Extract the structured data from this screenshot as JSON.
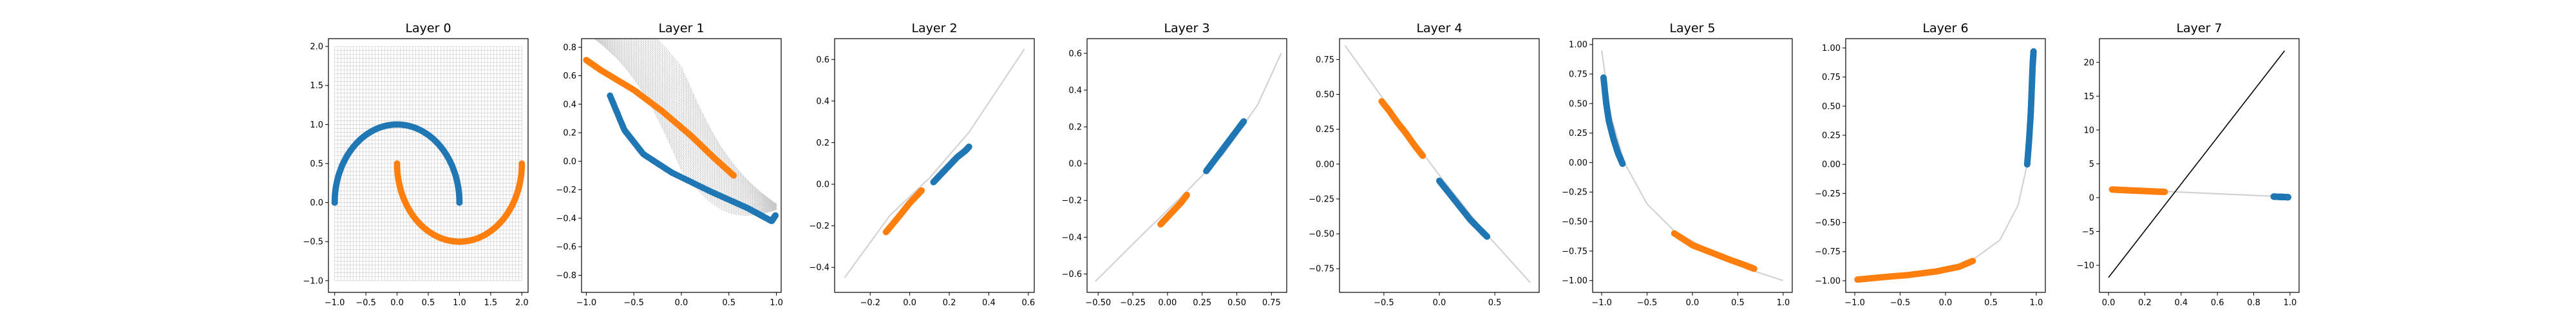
{
  "figure": {
    "colors": {
      "blue": "#1f77b4",
      "orange": "#ff7f0e",
      "grid": "#c8c8c8",
      "line": "#000000"
    }
  },
  "chart_data": [
    {
      "type": "scatter",
      "title": "Layer 0",
      "xlim": [
        -1.1,
        2.1
      ],
      "ylim": [
        -1.15,
        2.1
      ],
      "xticks": [
        -1.0,
        -0.5,
        0.0,
        0.5,
        1.0,
        1.5,
        2.0
      ],
      "xtick_labels": [
        "−1.0",
        "−0.5",
        "0.0",
        "0.5",
        "1.0",
        "1.5",
        "2.0"
      ],
      "yticks": [
        -1.0,
        -0.5,
        0.0,
        0.5,
        1.0,
        1.5,
        2.0
      ],
      "ytick_labels": [
        "−1.0",
        "−0.5",
        "0.0",
        "0.5",
        "1.0",
        "1.5",
        "2.0"
      ],
      "grid_mesh": {
        "x_range": [
          -1.0,
          2.0
        ],
        "y_range": [
          -1.0,
          2.0
        ],
        "shown": true
      },
      "series": [
        {
          "color": "#1f77b4",
          "shape": "upper half circle",
          "center": [
            0.0,
            0.0
          ],
          "radius": 1.0,
          "angle_deg": [
            0,
            180
          ]
        },
        {
          "color": "#ff7f0e",
          "shape": "lower half circle",
          "center": [
            1.0,
            0.5
          ],
          "radius": 1.0,
          "angle_deg": [
            180,
            360
          ]
        }
      ]
    },
    {
      "type": "scatter",
      "title": "Layer 1",
      "xlim": [
        -1.05,
        1.05
      ],
      "ylim": [
        -0.92,
        0.86
      ],
      "xticks": [
        -1.0,
        -0.5,
        0.0,
        0.5,
        1.0
      ],
      "xtick_labels": [
        "−1.0",
        "−0.5",
        "0.0",
        "0.5",
        "1.0"
      ],
      "yticks": [
        -0.8,
        -0.6,
        -0.4,
        -0.2,
        0.0,
        0.2,
        0.4,
        0.6,
        0.8
      ],
      "ytick_labels": [
        "−0.8",
        "−0.6",
        "−0.4",
        "−0.2",
        "0.0",
        "0.2",
        "0.4",
        "0.6",
        "0.8"
      ],
      "grid_band": {
        "shown": true
      },
      "series": [
        {
          "color": "#ff7f0e",
          "points": [
            [
              -1.0,
              0.71
            ],
            [
              -0.85,
              0.64
            ],
            [
              -0.5,
              0.5
            ],
            [
              -0.2,
              0.35
            ],
            [
              0.1,
              0.18
            ],
            [
              0.35,
              0.02
            ],
            [
              0.55,
              -0.1
            ]
          ]
        },
        {
          "color": "#1f77b4",
          "points": [
            [
              -0.75,
              0.46
            ],
            [
              -0.6,
              0.22
            ],
            [
              -0.4,
              0.05
            ],
            [
              -0.1,
              -0.08
            ],
            [
              0.3,
              -0.21
            ],
            [
              0.7,
              -0.33
            ],
            [
              0.95,
              -0.42
            ],
            [
              0.99,
              -0.38
            ]
          ]
        }
      ]
    },
    {
      "type": "scatter",
      "title": "Layer 2",
      "xlim": [
        -0.38,
        0.63
      ],
      "ylim": [
        -0.52,
        0.7
      ],
      "xticks": [
        -0.2,
        0.0,
        0.2,
        0.4,
        0.6
      ],
      "xtick_labels": [
        "−0.2",
        "0.0",
        "0.2",
        "0.4",
        "0.6"
      ],
      "yticks": [
        -0.4,
        -0.2,
        0.0,
        0.2,
        0.4,
        0.6
      ],
      "ytick_labels": [
        "−0.4",
        "−0.2",
        "0.0",
        "0.2",
        "0.4",
        "0.6"
      ],
      "curve": {
        "color": "#d3d3d3",
        "points": [
          [
            -0.33,
            -0.45
          ],
          [
            -0.1,
            -0.15
          ],
          [
            0.1,
            0.03
          ],
          [
            0.3,
            0.25
          ],
          [
            0.58,
            0.65
          ]
        ]
      },
      "series": [
        {
          "color": "#ff7f0e",
          "points": [
            [
              -0.12,
              -0.23
            ],
            [
              -0.05,
              -0.15
            ],
            [
              0.0,
              -0.09
            ],
            [
              0.04,
              -0.05
            ],
            [
              0.06,
              -0.03
            ]
          ]
        },
        {
          "color": "#1f77b4",
          "points": [
            [
              0.12,
              0.01
            ],
            [
              0.16,
              0.05
            ],
            [
              0.2,
              0.09
            ],
            [
              0.24,
              0.13
            ],
            [
              0.28,
              0.16
            ],
            [
              0.3,
              0.18
            ]
          ]
        }
      ]
    },
    {
      "type": "scatter",
      "title": "Layer 3",
      "xlim": [
        -0.58,
        0.86
      ],
      "ylim": [
        -0.7,
        0.68
      ],
      "xticks": [
        -0.5,
        -0.25,
        0.0,
        0.25,
        0.5,
        0.75
      ],
      "xtick_labels": [
        "−0.50",
        "−0.25",
        "0.00",
        "0.25",
        "0.50",
        "0.75"
      ],
      "yticks": [
        -0.6,
        -0.4,
        -0.2,
        0.0,
        0.2,
        0.4,
        0.6
      ],
      "ytick_labels": [
        "−0.6",
        "−0.4",
        "−0.2",
        "0.0",
        "0.2",
        "0.4",
        "0.6"
      ],
      "curve": {
        "color": "#d3d3d3",
        "points": [
          [
            -0.52,
            -0.64
          ],
          [
            -0.2,
            -0.4
          ],
          [
            0.1,
            -0.18
          ],
          [
            0.4,
            0.05
          ],
          [
            0.65,
            0.32
          ],
          [
            0.82,
            0.6
          ]
        ]
      },
      "series": [
        {
          "color": "#ff7f0e",
          "points": [
            [
              -0.05,
              -0.33
            ],
            [
              0.0,
              -0.29
            ],
            [
              0.05,
              -0.25
            ],
            [
              0.1,
              -0.21
            ],
            [
              0.14,
              -0.17
            ]
          ]
        },
        {
          "color": "#1f77b4",
          "points": [
            [
              0.28,
              -0.04
            ],
            [
              0.34,
              0.02
            ],
            [
              0.4,
              0.08
            ],
            [
              0.46,
              0.14
            ],
            [
              0.52,
              0.2
            ],
            [
              0.55,
              0.23
            ]
          ]
        }
      ]
    },
    {
      "type": "scatter",
      "title": "Layer 4",
      "xlim": [
        -0.9,
        0.9
      ],
      "ylim": [
        -0.92,
        0.9
      ],
      "xticks": [
        -0.5,
        0.0,
        0.5
      ],
      "xtick_labels": [
        "−0.5",
        "0.0",
        "0.5"
      ],
      "yticks": [
        -0.75,
        -0.5,
        -0.25,
        0.0,
        0.25,
        0.5,
        0.75
      ],
      "ytick_labels": [
        "−0.75",
        "−0.50",
        "−0.25",
        "0.00",
        "0.25",
        "0.50",
        "0.75"
      ],
      "curve": {
        "color": "#d3d3d3",
        "points": [
          [
            -0.85,
            0.85
          ],
          [
            -0.4,
            0.35
          ],
          [
            0.0,
            -0.08
          ],
          [
            0.4,
            -0.48
          ],
          [
            0.82,
            -0.85
          ]
        ]
      },
      "series": [
        {
          "color": "#ff7f0e",
          "points": [
            [
              -0.52,
              0.45
            ],
            [
              -0.45,
              0.38
            ],
            [
              -0.38,
              0.3
            ],
            [
              -0.3,
              0.22
            ],
            [
              -0.22,
              0.13
            ],
            [
              -0.15,
              0.06
            ]
          ]
        },
        {
          "color": "#1f77b4",
          "points": [
            [
              0.0,
              -0.12
            ],
            [
              0.08,
              -0.2
            ],
            [
              0.18,
              -0.3
            ],
            [
              0.28,
              -0.4
            ],
            [
              0.38,
              -0.48
            ],
            [
              0.43,
              -0.52
            ]
          ]
        }
      ]
    },
    {
      "type": "scatter",
      "title": "Layer 5",
      "xlim": [
        -1.1,
        1.1
      ],
      "ylim": [
        -1.1,
        1.05
      ],
      "xticks": [
        -1.0,
        -0.5,
        0.0,
        0.5,
        1.0
      ],
      "xtick_labels": [
        "−1.0",
        "−0.5",
        "0.0",
        "0.5",
        "1.0"
      ],
      "yticks": [
        -1.0,
        -0.75,
        -0.5,
        -0.25,
        0.0,
        0.25,
        0.5,
        0.75,
        1.0
      ],
      "ytick_labels": [
        "−1.00",
        "−0.75",
        "−0.50",
        "−0.25",
        "0.00",
        "0.25",
        "0.50",
        "0.75",
        "1.00"
      ],
      "curve": {
        "color": "#d3d3d3",
        "points": [
          [
            -1.0,
            0.95
          ],
          [
            -0.9,
            0.4
          ],
          [
            -0.75,
            0.0
          ],
          [
            -0.5,
            -0.35
          ],
          [
            -0.2,
            -0.58
          ],
          [
            0.2,
            -0.75
          ],
          [
            0.6,
            -0.9
          ],
          [
            1.0,
            -1.0
          ]
        ]
      },
      "series": [
        {
          "color": "#1f77b4",
          "points": [
            [
              -0.98,
              0.72
            ],
            [
              -0.95,
              0.5
            ],
            [
              -0.92,
              0.35
            ],
            [
              -0.87,
              0.2
            ],
            [
              -0.82,
              0.08
            ],
            [
              -0.77,
              -0.01
            ]
          ]
        },
        {
          "color": "#ff7f0e",
          "points": [
            [
              -0.2,
              -0.6
            ],
            [
              0.0,
              -0.7
            ],
            [
              0.2,
              -0.76
            ],
            [
              0.4,
              -0.82
            ],
            [
              0.58,
              -0.87
            ],
            [
              0.68,
              -0.9
            ]
          ]
        }
      ]
    },
    {
      "type": "scatter",
      "title": "Layer 6",
      "xlim": [
        -1.1,
        1.1
      ],
      "ylim": [
        -1.1,
        1.08
      ],
      "xticks": [
        -1.0,
        -0.5,
        0.0,
        0.5,
        1.0
      ],
      "xtick_labels": [
        "−1.0",
        "−0.5",
        "0.0",
        "0.5",
        "1.0"
      ],
      "yticks": [
        -1.0,
        -0.75,
        -0.5,
        -0.25,
        0.0,
        0.25,
        0.5,
        0.75,
        1.0
      ],
      "ytick_labels": [
        "−1.00",
        "−0.75",
        "−0.50",
        "−0.25",
        "0.00",
        "0.25",
        "0.50",
        "0.75",
        "1.00"
      ],
      "curve": {
        "color": "#d3d3d3",
        "points": [
          [
            -1.0,
            -1.0
          ],
          [
            -0.5,
            -0.96
          ],
          [
            0.0,
            -0.9
          ],
          [
            0.3,
            -0.82
          ],
          [
            0.6,
            -0.65
          ],
          [
            0.8,
            -0.35
          ],
          [
            0.9,
            0.0
          ],
          [
            0.95,
            0.5
          ],
          [
            0.98,
            1.0
          ]
        ]
      },
      "series": [
        {
          "color": "#ff7f0e",
          "points": [
            [
              -0.97,
              -0.99
            ],
            [
              -0.7,
              -0.97
            ],
            [
              -0.4,
              -0.95
            ],
            [
              -0.1,
              -0.92
            ],
            [
              0.15,
              -0.88
            ],
            [
              0.3,
              -0.83
            ]
          ]
        },
        {
          "color": "#1f77b4",
          "points": [
            [
              0.9,
              0.0
            ],
            [
              0.92,
              0.2
            ],
            [
              0.94,
              0.45
            ],
            [
              0.95,
              0.65
            ],
            [
              0.96,
              0.85
            ],
            [
              0.97,
              0.97
            ]
          ]
        }
      ]
    },
    {
      "type": "scatter",
      "title": "Layer 7",
      "xlim": [
        -0.05,
        1.05
      ],
      "ylim": [
        -14.0,
        23.5
      ],
      "xticks": [
        0.0,
        0.2,
        0.4,
        0.6,
        0.8,
        1.0
      ],
      "xtick_labels": [
        "0.0",
        "0.2",
        "0.4",
        "0.6",
        "0.8",
        "1.0"
      ],
      "yticks": [
        -10,
        -5,
        0,
        5,
        10,
        15,
        20
      ],
      "ytick_labels": [
        "−10",
        "−5",
        "0",
        "5",
        "10",
        "15",
        "20"
      ],
      "curve": {
        "color": "#d3d3d3",
        "points": [
          [
            0.0,
            1.3
          ],
          [
            0.5,
            0.7
          ],
          [
            1.0,
            0.1
          ]
        ]
      },
      "decision_line": {
        "color": "#000000",
        "points": [
          [
            0.0,
            -11.8
          ],
          [
            0.97,
            21.7
          ]
        ]
      },
      "series": [
        {
          "color": "#ff7f0e",
          "points": [
            [
              0.02,
              1.2
            ],
            [
              0.08,
              1.12
            ],
            [
              0.14,
              1.05
            ],
            [
              0.2,
              0.98
            ],
            [
              0.26,
              0.9
            ],
            [
              0.31,
              0.85
            ]
          ]
        },
        {
          "color": "#1f77b4",
          "points": [
            [
              0.91,
              0.15
            ],
            [
              0.94,
              0.12
            ],
            [
              0.97,
              0.09
            ],
            [
              0.99,
              0.07
            ]
          ]
        }
      ]
    }
  ]
}
